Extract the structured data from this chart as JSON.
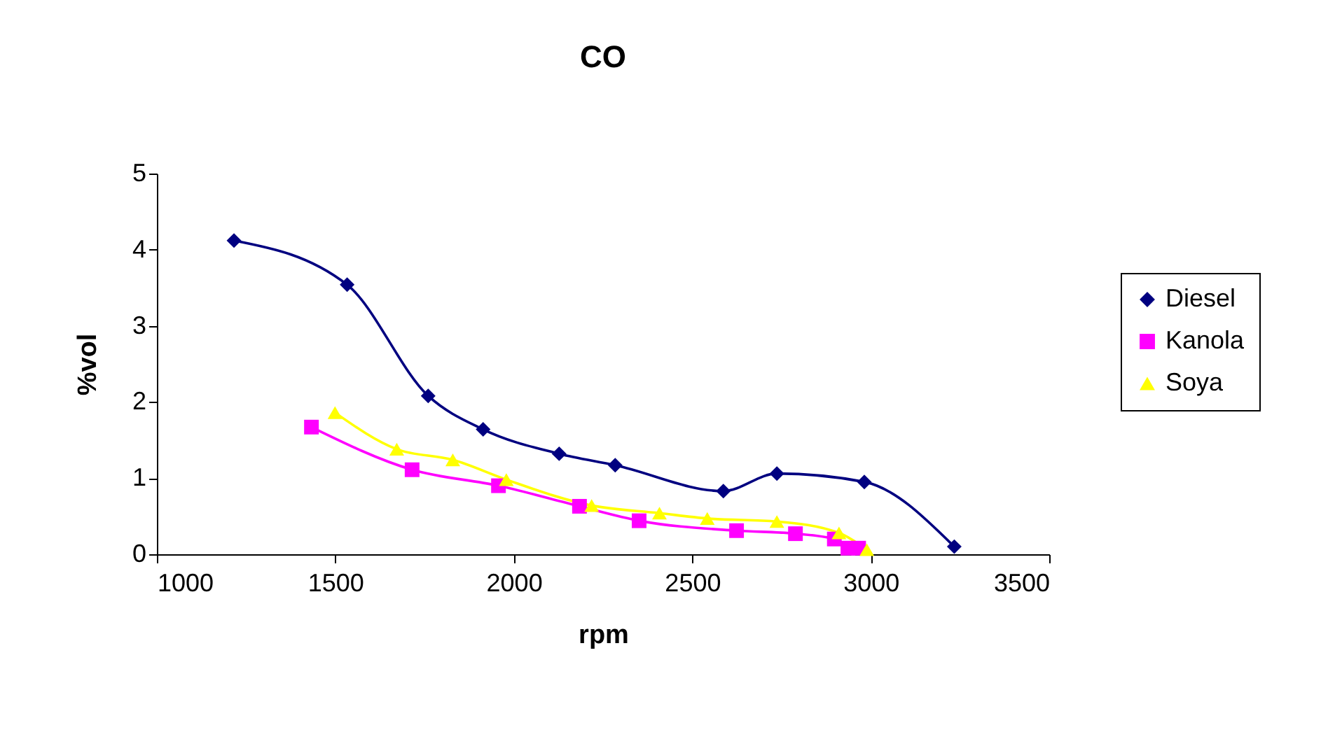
{
  "chart_data": {
    "type": "line",
    "title": "CO",
    "xlabel": "rpm",
    "ylabel": "%vol",
    "xlim": [
      1000,
      3500
    ],
    "xticks": [
      1000,
      1500,
      2000,
      2500,
      3000,
      3500
    ],
    "ylim": [
      0,
      5
    ],
    "yticks": [
      0,
      1,
      2,
      3,
      4,
      5
    ],
    "grid": false,
    "legend": "right",
    "line_style": "solid",
    "series": [
      {
        "name": "Diesel",
        "color": "#000080",
        "marker": "diamond",
        "x": [
          1216,
          1533,
          1760,
          1914,
          2127,
          2284,
          2587,
          2737,
          2982,
          3234
        ],
        "values": [
          4.12,
          3.54,
          2.08,
          1.64,
          1.32,
          1.17,
          0.83,
          1.06,
          0.95,
          0.1
        ]
      },
      {
        "name": "Kanola",
        "color": "#ff00ff",
        "marker": "square",
        "x": [
          1433,
          1715,
          1957,
          2184,
          2351,
          2624,
          2789,
          2898,
          2936,
          2966
        ],
        "values": [
          1.67,
          1.11,
          0.9,
          0.63,
          0.44,
          0.31,
          0.27,
          0.2,
          0.08,
          0.08
        ]
      },
      {
        "name": "Soya",
        "color": "#ffff00",
        "marker": "triangle",
        "x": [
          1499,
          1672,
          1829,
          1979,
          2218,
          2408,
          2542,
          2737,
          2911,
          2989
        ],
        "values": [
          1.86,
          1.38,
          1.24,
          0.98,
          0.64,
          0.54,
          0.47,
          0.43,
          0.28,
          0.06
        ]
      }
    ]
  }
}
